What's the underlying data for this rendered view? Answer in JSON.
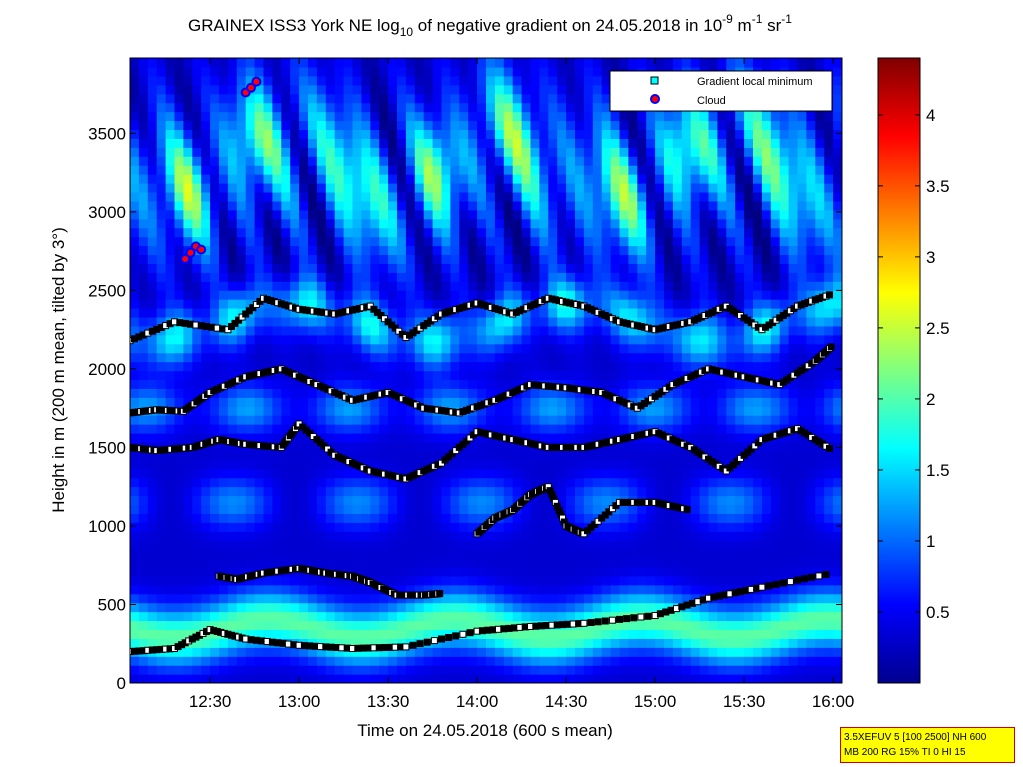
{
  "chart_data": {
    "type": "heatmap",
    "title": {
      "prefix": "GRAINEX ISS3 York NE log",
      "log_base": "10",
      "middle": " of negative gradient on 24.05.2018 in 10",
      "exp1": "-9",
      "m": " m",
      "exp2": "-1",
      "sr": " sr",
      "exp3": "-1"
    },
    "xlabel": "Time on 24.05.2018 (600 s mean)",
    "ylabel": "Height in m (200 m mean, tilted by 3°)",
    "x_ticks": [
      {
        "label": "12:30",
        "value": 12.5
      },
      {
        "label": "13:00",
        "value": 13.0
      },
      {
        "label": "13:30",
        "value": 13.5
      },
      {
        "label": "14:00",
        "value": 14.0
      },
      {
        "label": "14:30",
        "value": 14.5
      },
      {
        "label": "15:00",
        "value": 15.0
      },
      {
        "label": "15:30",
        "value": 15.5
      },
      {
        "label": "16:00",
        "value": 16.0
      }
    ],
    "xlim": [
      12.05,
      16.05
    ],
    "y_ticks": [
      0,
      500,
      1000,
      1500,
      2000,
      2500,
      3000,
      3500
    ],
    "ylim": [
      0,
      3980
    ],
    "colorbar": {
      "ticks": [
        "0.5",
        "1",
        "1.5",
        "2",
        "2.5",
        "3",
        "3.5",
        "4"
      ],
      "tick_values": [
        0.5,
        1,
        1.5,
        2,
        2.5,
        3,
        3.5,
        4
      ],
      "range": [
        0,
        4.4
      ],
      "colormap": "jet"
    },
    "legend": {
      "position": "top-right",
      "entries": [
        {
          "label": "Gradient local minimum",
          "marker": "square",
          "color": "#00ffff"
        },
        {
          "label": "Cloud",
          "marker": "circle",
          "color": "#ff0000",
          "edge": "#0000ff"
        }
      ]
    },
    "series": [
      {
        "name": "Gradient local minimum",
        "layers": [
          {
            "x": [
              12.05,
              12.3,
              12.5,
              12.7,
              13.0,
              13.3,
              13.6,
              14.0,
              14.3,
              14.6,
              15.0,
              15.3,
              15.6,
              16.0
            ],
            "y": [
              200,
              220,
              340,
              280,
              240,
              220,
              230,
              330,
              360,
              380,
              430,
              540,
              610,
              700
            ]
          },
          {
            "x": [
              12.55,
              12.65,
              12.8,
              13.0,
              13.15,
              13.3,
              13.4,
              13.55,
              13.7,
              13.8
            ],
            "y": [
              680,
              660,
              700,
              730,
              700,
              680,
              640,
              560,
              560,
              570
            ]
          },
          {
            "x": [
              14.0,
              14.1,
              14.2,
              14.3,
              14.4,
              14.5,
              14.6,
              14.8,
              15.0,
              15.2
            ],
            "y": [
              950,
              1050,
              1100,
              1200,
              1250,
              1000,
              950,
              1150,
              1150,
              1100
            ]
          },
          {
            "x": [
              12.05,
              12.2,
              12.4,
              12.55,
              12.7,
              12.9,
              13.0,
              13.2,
              13.4,
              13.6,
              13.8,
              14.0,
              14.2,
              14.4,
              14.6,
              14.8,
              15.0,
              15.2,
              15.4,
              15.6,
              15.8,
              16.0
            ],
            "y": [
              1500,
              1480,
              1500,
              1550,
              1520,
              1500,
              1650,
              1450,
              1350,
              1300,
              1400,
              1600,
              1550,
              1500,
              1500,
              1550,
              1600,
              1500,
              1350,
              1550,
              1620,
              1480
            ]
          },
          {
            "x": [
              12.05,
              12.2,
              12.35,
              12.5,
              12.7,
              12.9,
              13.1,
              13.3,
              13.5,
              13.7,
              13.9,
              14.1,
              14.3,
              14.5,
              14.7,
              14.9,
              15.1,
              15.3,
              15.5,
              15.7,
              15.9,
              16.0
            ],
            "y": [
              1720,
              1740,
              1730,
              1850,
              1950,
              2000,
              1900,
              1800,
              1850,
              1750,
              1720,
              1800,
              1900,
              1880,
              1850,
              1750,
              1900,
              2000,
              1950,
              1900,
              2050,
              2150
            ]
          },
          {
            "x": [
              12.05,
              12.3,
              12.6,
              12.8,
              13.0,
              13.2,
              13.4,
              13.6,
              13.8,
              14.0,
              14.2,
              14.4,
              14.6,
              14.8,
              15.0,
              15.2,
              15.4,
              15.6,
              15.8,
              16.0
            ],
            "y": [
              2180,
              2300,
              2250,
              2450,
              2380,
              2350,
              2400,
              2200,
              2350,
              2420,
              2350,
              2450,
              2400,
              2300,
              2250,
              2300,
              2400,
              2250,
              2400,
              2480
            ]
          }
        ]
      },
      {
        "name": "Cloud",
        "layers": [
          {
            "x": [
              12.36,
              12.39,
              12.42,
              12.45
            ],
            "y": [
              2700,
              2740,
              2780,
              2760
            ]
          },
          {
            "x": [
              12.7,
              12.73,
              12.76
            ],
            "y": [
              3760,
              3790,
              3830
            ]
          }
        ]
      }
    ]
  },
  "info_box": {
    "line1": "3.5XEFUV 5 [100 2500] NH 600",
    "line2": "MB 200 RG 15% TI 0 HI 15"
  }
}
